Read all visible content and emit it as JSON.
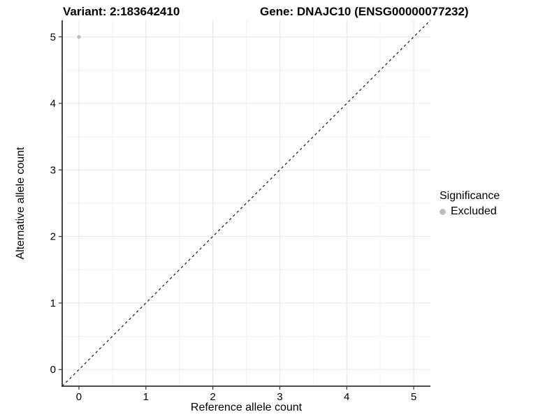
{
  "titles": {
    "variant": "Variant: 2:183642410",
    "gene": "Gene: DNAJC10 (ENSG00000077232)"
  },
  "legend": {
    "title": "Significance",
    "entries": [
      {
        "label": "Excluded",
        "color": "#bdbdbd"
      }
    ]
  },
  "chart_data": {
    "type": "scatter",
    "title": "Variant: 2:183642410 — Gene: DNAJC10 (ENSG00000077232)",
    "xlabel": "Reference allele count",
    "ylabel": "Alternative allele count",
    "xlim": [
      -0.25,
      5.25
    ],
    "ylim": [
      -0.25,
      5.25
    ],
    "xticks": [
      0,
      1,
      2,
      3,
      4,
      5
    ],
    "yticks": [
      0,
      1,
      2,
      3,
      4,
      5
    ],
    "grid": true,
    "legend_position": "right",
    "identity_line": {
      "style": "dashed",
      "from": [
        -0.25,
        -0.25
      ],
      "to": [
        5.25,
        5.25
      ],
      "color": "#000000"
    },
    "series": [
      {
        "name": "Excluded",
        "color": "#bdbdbd",
        "points": [
          {
            "x": 0,
            "y": 5
          }
        ]
      }
    ],
    "colors": {
      "grid_major": "#e5e5e5",
      "grid_minor": "#f3f3f3",
      "axis": "#333333",
      "tick_label": "#000000",
      "background": "#ffffff"
    }
  }
}
